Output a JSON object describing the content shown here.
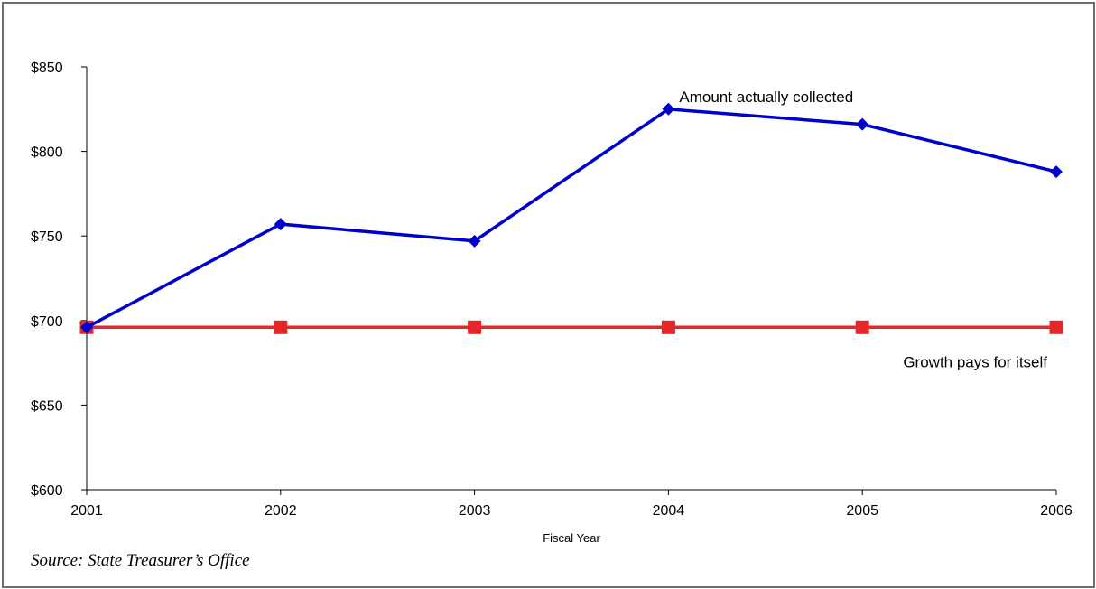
{
  "chart_data": {
    "type": "line",
    "categories": [
      "2001",
      "2002",
      "2003",
      "2004",
      "2005",
      "2006"
    ],
    "xlabel": "Fiscal Year",
    "ylabel": "",
    "ylim": [
      600,
      850
    ],
    "yticks": [
      600,
      650,
      700,
      750,
      800,
      850
    ],
    "ytick_labels": [
      "$600",
      "$650",
      "$700",
      "$750",
      "$800",
      "$850"
    ],
    "grid": false,
    "series": [
      {
        "name": "Amount actually collected",
        "values": [
          696,
          757,
          747,
          825,
          816,
          788
        ],
        "color": "#0000cc",
        "marker": "diamond"
      },
      {
        "name": "Growth pays for itself",
        "values": [
          696,
          696,
          696,
          696,
          696,
          696
        ],
        "color": "#e8262a",
        "marker": "square"
      }
    ]
  },
  "source_note": "Source: State Treasurer’s Office"
}
